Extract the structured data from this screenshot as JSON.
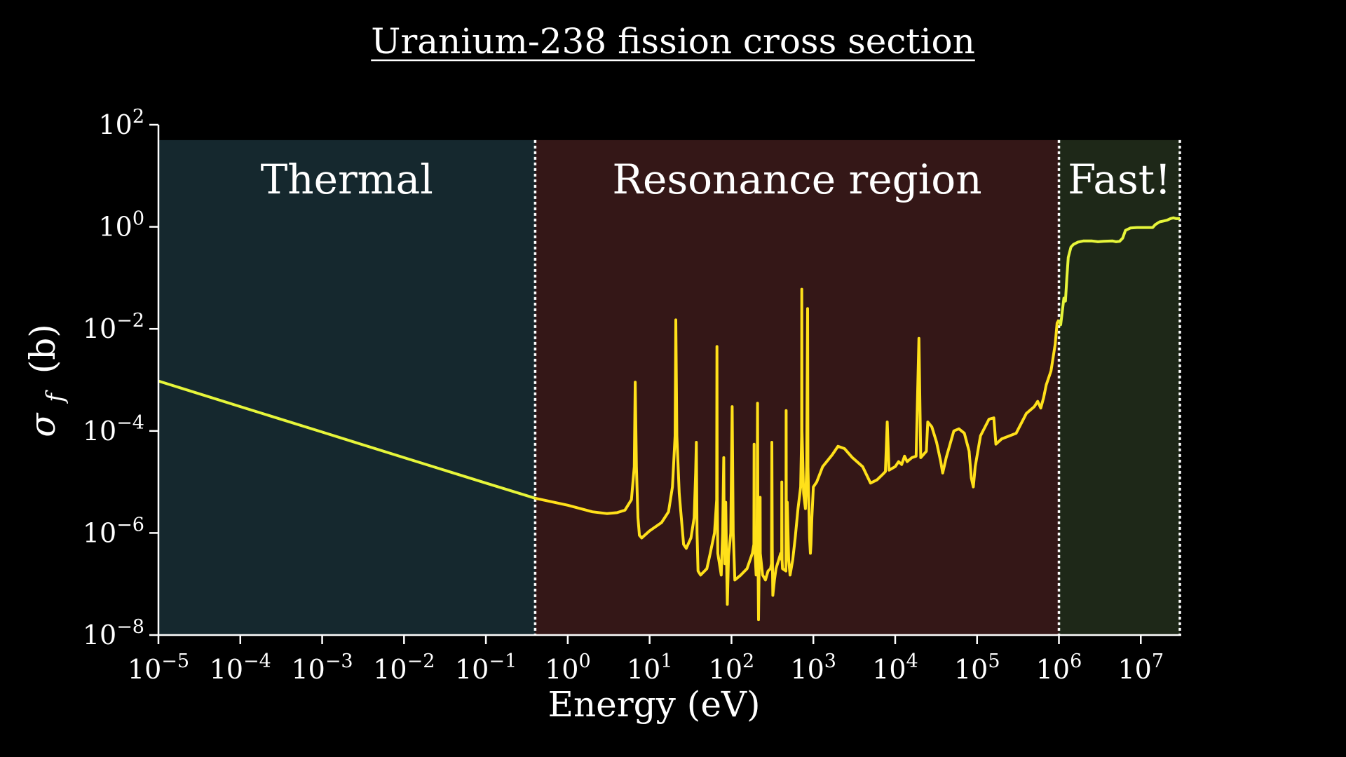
{
  "chart_data": {
    "type": "line",
    "title": "Uranium-238 fission cross section",
    "xlabel": "Energy (eV)",
    "ylabel_symbol": "σ",
    "ylabel_subscript": "f",
    "ylabel_unit": "(b)",
    "x_scale": "log",
    "y_scale": "log",
    "xlim": [
      1e-05,
      30000000.0
    ],
    "ylim": [
      1e-08,
      100
    ],
    "grid": false,
    "legend": "none",
    "x_ticks": [
      {
        "base": "10",
        "exp": "−5",
        "value": 1e-05
      },
      {
        "base": "10",
        "exp": "−4",
        "value": 0.0001
      },
      {
        "base": "10",
        "exp": "−3",
        "value": 0.001
      },
      {
        "base": "10",
        "exp": "−2",
        "value": 0.01
      },
      {
        "base": "10",
        "exp": "−1",
        "value": 0.1
      },
      {
        "base": "10",
        "exp": "0",
        "value": 1
      },
      {
        "base": "10",
        "exp": "1",
        "value": 10
      },
      {
        "base": "10",
        "exp": "2",
        "value": 100
      },
      {
        "base": "10",
        "exp": "3",
        "value": 1000
      },
      {
        "base": "10",
        "exp": "4",
        "value": 10000
      },
      {
        "base": "10",
        "exp": "5",
        "value": 100000
      },
      {
        "base": "10",
        "exp": "6",
        "value": 1000000
      },
      {
        "base": "10",
        "exp": "7",
        "value": 10000000
      }
    ],
    "y_ticks": [
      {
        "base": "10",
        "exp": "−8",
        "value": 1e-08
      },
      {
        "base": "10",
        "exp": "−6",
        "value": 1e-06
      },
      {
        "base": "10",
        "exp": "−4",
        "value": 0.0001
      },
      {
        "base": "10",
        "exp": "−2",
        "value": 0.01
      },
      {
        "base": "10",
        "exp": "0",
        "value": 1
      },
      {
        "base": "10",
        "exp": "2",
        "value": 100
      }
    ],
    "regions": [
      {
        "label": "Thermal",
        "x_start": 1e-05,
        "x_end": 0.4,
        "color": "#15282e"
      },
      {
        "label": "Resonance region",
        "x_start": 0.4,
        "x_end": 1000000,
        "color": "#341717"
      },
      {
        "label": "Fast!",
        "x_start": 1000000,
        "x_end": 30000000.0,
        "color": "#1e2818"
      }
    ],
    "region_top": 50,
    "colors": {
      "thermal_line": "#e6f53a",
      "resonance_line": "#ffe01a",
      "fast_line": "#e6f53a",
      "boundary": "#ffffff"
    },
    "series": [
      {
        "values": [
          [
            1e-05,
            0.00095
          ],
          [
            0.0001,
            0.0003
          ],
          [
            0.001,
            9.5e-05
          ],
          [
            0.01,
            3e-05
          ],
          [
            0.1,
            9.5e-06
          ],
          [
            0.4,
            4.8e-06
          ],
          [
            1,
            3.5e-06
          ],
          [
            2,
            2.6e-06
          ],
          [
            3,
            2.4e-06
          ],
          [
            4,
            2.5e-06
          ],
          [
            5,
            2.8e-06
          ],
          [
            6,
            4.5e-06
          ],
          [
            6.5,
            2e-05
          ],
          [
            6.67,
            0.0009
          ],
          [
            6.9,
            2e-05
          ],
          [
            7.2,
            2e-06
          ],
          [
            7.5,
            9e-07
          ],
          [
            8,
            8e-07
          ],
          [
            10,
            1.1e-06
          ],
          [
            14,
            1.6e-06
          ],
          [
            17,
            2.6e-06
          ],
          [
            19,
            8e-06
          ],
          [
            20.5,
            8e-05
          ],
          [
            20.9,
            0.015
          ],
          [
            21.5,
            8e-05
          ],
          [
            23,
            6e-06
          ],
          [
            26,
            6e-07
          ],
          [
            28,
            5e-07
          ],
          [
            32,
            8e-07
          ],
          [
            35,
            2e-06
          ],
          [
            36.5,
            1.5e-05
          ],
          [
            37.2,
            6e-05
          ],
          [
            38,
            1e-06
          ],
          [
            39,
            1.8e-07
          ],
          [
            42,
            1.5e-07
          ],
          [
            50,
            2e-07
          ],
          [
            55,
            4e-07
          ],
          [
            62,
            1e-06
          ],
          [
            66,
            4.5e-06
          ],
          [
            66.4,
            0.0045
          ],
          [
            67,
            5e-06
          ],
          [
            68,
            4e-07
          ],
          [
            75,
            1.5e-07
          ],
          [
            78,
            1e-06
          ],
          [
            80.5,
            3e-05
          ],
          [
            81,
            5e-06
          ],
          [
            83,
            2.5e-07
          ],
          [
            85,
            4e-06
          ],
          [
            87,
            3e-07
          ],
          [
            89,
            4e-08
          ],
          [
            92,
            3.5e-07
          ],
          [
            98,
            1e-06
          ],
          [
            102,
            0.0003
          ],
          [
            105,
            1e-06
          ],
          [
            110,
            1.2e-07
          ],
          [
            130,
            1.5e-07
          ],
          [
            155,
            2e-07
          ],
          [
            180,
            4e-07
          ],
          [
            188,
            6e-07
          ],
          [
            189,
            5.5e-05
          ],
          [
            190,
            8e-07
          ],
          [
            200,
            1.5e-07
          ],
          [
            205,
            3e-07
          ],
          [
            208,
            0.00035
          ],
          [
            211,
            3e-07
          ],
          [
            214,
            2e-08
          ],
          [
            218,
            2.5e-07
          ],
          [
            224,
            5e-06
          ],
          [
            225,
            4e-07
          ],
          [
            240,
            1.5e-07
          ],
          [
            260,
            1.2e-07
          ],
          [
            280,
            1.8e-07
          ],
          [
            300,
            2e-07
          ],
          [
            308,
            2.5e-07
          ],
          [
            311,
            6e-05
          ],
          [
            315,
            5e-07
          ],
          [
            320,
            6e-08
          ],
          [
            335,
            1.2e-07
          ],
          [
            350,
            2e-07
          ],
          [
            400,
            4e-07
          ],
          [
            410,
            3e-07
          ],
          [
            412,
            1e-05
          ],
          [
            415,
            3e-07
          ],
          [
            420,
            2e-07
          ],
          [
            463,
            1.8e-07
          ],
          [
            465,
            0.00025
          ],
          [
            468,
            3e-07
          ],
          [
            480,
            4e-06
          ],
          [
            500,
            3e-07
          ],
          [
            520,
            1.5e-07
          ],
          [
            560,
            3e-07
          ],
          [
            600,
            8e-07
          ],
          [
            650,
            3e-06
          ],
          [
            700,
            8e-06
          ],
          [
            720,
            8e-05
          ],
          [
            723,
            0.06
          ],
          [
            726,
            0.0001
          ],
          [
            760,
            6e-06
          ],
          [
            800,
            3e-06
          ],
          [
            830,
            2e-05
          ],
          [
            851,
            0.025
          ],
          [
            860,
            2e-05
          ],
          [
            900,
            8e-07
          ],
          [
            920,
            4e-07
          ],
          [
            935,
            6e-07
          ],
          [
            960,
            2e-06
          ],
          [
            1000,
            8e-06
          ],
          [
            1100,
            1e-05
          ],
          [
            1300,
            2e-05
          ],
          [
            1700,
            3.4e-05
          ],
          [
            2000,
            5e-05
          ],
          [
            2400,
            4.5e-05
          ],
          [
            3000,
            3e-05
          ],
          [
            4000,
            2e-05
          ],
          [
            5000,
            9.5e-06
          ],
          [
            6000,
            1.1e-05
          ],
          [
            7000,
            1.4e-05
          ],
          [
            7600,
            1.6e-05
          ],
          [
            8000,
            0.00015
          ],
          [
            8400,
            1.7e-05
          ],
          [
            10000,
            2e-05
          ],
          [
            11000,
            2.5e-05
          ],
          [
            12000,
            2.2e-05
          ],
          [
            13000,
            3.2e-05
          ],
          [
            14000,
            2.5e-05
          ],
          [
            16000,
            3e-05
          ],
          [
            18000,
            3.2e-05
          ],
          [
            19500,
            0.0065
          ],
          [
            20500,
            3e-05
          ],
          [
            24000,
            4e-05
          ],
          [
            25000,
            0.00015
          ],
          [
            28000,
            0.00012
          ],
          [
            32000,
            6e-05
          ],
          [
            36000,
            2.5e-05
          ],
          [
            38000,
            1.5e-05
          ],
          [
            42000,
            3e-05
          ],
          [
            52000,
            0.0001
          ],
          [
            60000,
            0.00011
          ],
          [
            70000,
            9e-05
          ],
          [
            80000,
            4e-05
          ],
          [
            85000,
            1.2e-05
          ],
          [
            90000,
            8e-06
          ],
          [
            95000,
            2e-05
          ],
          [
            110000,
            8e-05
          ],
          [
            140000,
            0.00017
          ],
          [
            160000,
            0.00018
          ],
          [
            170000,
            5.5e-05
          ],
          [
            200000,
            7e-05
          ],
          [
            300000,
            9e-05
          ],
          [
            400000,
            0.00022
          ],
          [
            500000,
            0.0003
          ],
          [
            550000,
            0.00038
          ],
          [
            600000,
            0.00028
          ],
          [
            650000,
            0.00045
          ],
          [
            700000,
            0.0008
          ],
          [
            800000,
            0.0015
          ],
          [
            900000,
            0.005
          ],
          [
            950000,
            0.013
          ],
          [
            1000000,
            0.015
          ]
        ]
      }
    ],
    "fast_series": [
      [
        1000000,
        0.015
      ],
      [
        1050000,
        0.012
      ],
      [
        1100000,
        0.022
      ],
      [
        1150000,
        0.04
      ],
      [
        1200000,
        0.035
      ],
      [
        1250000,
        0.1
      ],
      [
        1300000,
        0.25
      ],
      [
        1400000,
        0.4
      ],
      [
        1500000,
        0.45
      ],
      [
        1700000,
        0.5
      ],
      [
        2000000,
        0.53
      ],
      [
        2500000,
        0.53
      ],
      [
        3000000,
        0.51
      ],
      [
        3500000,
        0.52
      ],
      [
        4500000,
        0.53
      ],
      [
        5000000,
        0.51
      ],
      [
        5500000,
        0.52
      ],
      [
        6000000,
        0.6
      ],
      [
        6500000,
        0.85
      ],
      [
        7500000,
        0.95
      ],
      [
        9000000,
        0.97
      ],
      [
        12000000,
        0.97
      ],
      [
        14000000,
        0.97
      ],
      [
        15000000,
        1.1
      ],
      [
        17000000,
        1.25
      ],
      [
        19000000,
        1.3
      ],
      [
        21000000,
        1.35
      ],
      [
        23000000,
        1.45
      ],
      [
        25000000,
        1.5
      ],
      [
        27000000,
        1.45
      ],
      [
        30000000,
        1.45
      ]
    ]
  }
}
